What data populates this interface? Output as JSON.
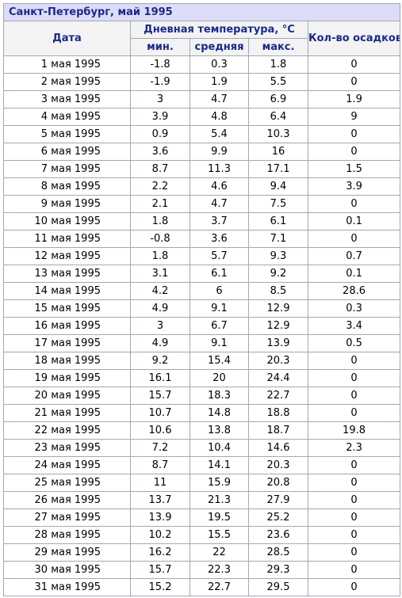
{
  "title": "Санкт-Петербург, май 1995",
  "headers": {
    "date": "Дата",
    "temp_group": "Дневная температура, °C",
    "min": "мин.",
    "avg": "средняя",
    "max": "макс.",
    "precip": "Кол-во осадков, мм"
  },
  "rows": [
    {
      "date": "1 мая 1995",
      "min": "-1.8",
      "avg": "0.3",
      "max": "1.8",
      "precip": "0"
    },
    {
      "date": "2 мая 1995",
      "min": "-1.9",
      "avg": "1.9",
      "max": "5.5",
      "precip": "0"
    },
    {
      "date": "3 мая 1995",
      "min": "3",
      "avg": "4.7",
      "max": "6.9",
      "precip": "1.9"
    },
    {
      "date": "4 мая 1995",
      "min": "3.9",
      "avg": "4.8",
      "max": "6.4",
      "precip": "9"
    },
    {
      "date": "5 мая 1995",
      "min": "0.9",
      "avg": "5.4",
      "max": "10.3",
      "precip": "0"
    },
    {
      "date": "6 мая 1995",
      "min": "3.6",
      "avg": "9.9",
      "max": "16",
      "precip": "0"
    },
    {
      "date": "7 мая 1995",
      "min": "8.7",
      "avg": "11.3",
      "max": "17.1",
      "precip": "1.5"
    },
    {
      "date": "8 мая 1995",
      "min": "2.2",
      "avg": "4.6",
      "max": "9.4",
      "precip": "3.9"
    },
    {
      "date": "9 мая 1995",
      "min": "2.1",
      "avg": "4.7",
      "max": "7.5",
      "precip": "0"
    },
    {
      "date": "10 мая 1995",
      "min": "1.8",
      "avg": "3.7",
      "max": "6.1",
      "precip": "0.1"
    },
    {
      "date": "11 мая 1995",
      "min": "-0.8",
      "avg": "3.6",
      "max": "7.1",
      "precip": "0"
    },
    {
      "date": "12 мая 1995",
      "min": "1.8",
      "avg": "5.7",
      "max": "9.3",
      "precip": "0.7"
    },
    {
      "date": "13 мая 1995",
      "min": "3.1",
      "avg": "6.1",
      "max": "9.2",
      "precip": "0.1"
    },
    {
      "date": "14 мая 1995",
      "min": "4.2",
      "avg": "6",
      "max": "8.5",
      "precip": "28.6"
    },
    {
      "date": "15 мая 1995",
      "min": "4.9",
      "avg": "9.1",
      "max": "12.9",
      "precip": "0.3"
    },
    {
      "date": "16 мая 1995",
      "min": "3",
      "avg": "6.7",
      "max": "12.9",
      "precip": "3.4"
    },
    {
      "date": "17 мая 1995",
      "min": "4.9",
      "avg": "9.1",
      "max": "13.9",
      "precip": "0.5"
    },
    {
      "date": "18 мая 1995",
      "min": "9.2",
      "avg": "15.4",
      "max": "20.3",
      "precip": "0"
    },
    {
      "date": "19 мая 1995",
      "min": "16.1",
      "avg": "20",
      "max": "24.4",
      "precip": "0"
    },
    {
      "date": "20 мая 1995",
      "min": "15.7",
      "avg": "18.3",
      "max": "22.7",
      "precip": "0"
    },
    {
      "date": "21 мая 1995",
      "min": "10.7",
      "avg": "14.8",
      "max": "18.8",
      "precip": "0"
    },
    {
      "date": "22 мая 1995",
      "min": "10.6",
      "avg": "13.8",
      "max": "18.7",
      "precip": "19.8"
    },
    {
      "date": "23 мая 1995",
      "min": "7.2",
      "avg": "10.4",
      "max": "14.6",
      "precip": "2.3"
    },
    {
      "date": "24 мая 1995",
      "min": "8.7",
      "avg": "14.1",
      "max": "20.3",
      "precip": "0"
    },
    {
      "date": "25 мая 1995",
      "min": "11",
      "avg": "15.9",
      "max": "20.8",
      "precip": "0"
    },
    {
      "date": "26 мая 1995",
      "min": "13.7",
      "avg": "21.3",
      "max": "27.9",
      "precip": "0"
    },
    {
      "date": "27 мая 1995",
      "min": "13.9",
      "avg": "19.5",
      "max": "25.2",
      "precip": "0"
    },
    {
      "date": "28 мая 1995",
      "min": "10.2",
      "avg": "15.5",
      "max": "23.6",
      "precip": "0"
    },
    {
      "date": "29 мая 1995",
      "min": "16.2",
      "avg": "22",
      "max": "28.5",
      "precip": "0"
    },
    {
      "date": "30 мая 1995",
      "min": "15.7",
      "avg": "22.3",
      "max": "29.3",
      "precip": "0"
    },
    {
      "date": "31 мая 1995",
      "min": "15.2",
      "avg": "22.7",
      "max": "29.5",
      "precip": "0"
    }
  ]
}
